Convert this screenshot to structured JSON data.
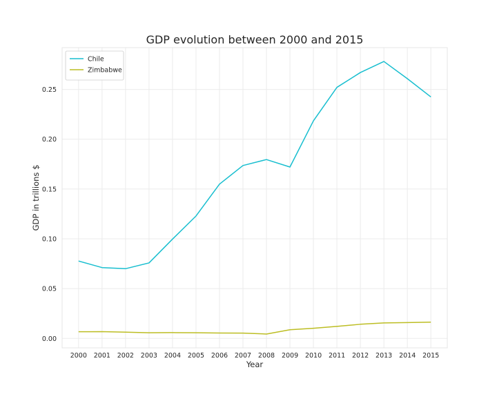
{
  "chart_data": {
    "type": "line",
    "title": "GDP evolution between 2000 and 2015",
    "xlabel": "Year",
    "ylabel": "GDP in trillions $",
    "x": [
      2000,
      2001,
      2002,
      2003,
      2004,
      2005,
      2006,
      2007,
      2008,
      2009,
      2010,
      2011,
      2012,
      2013,
      2014,
      2015
    ],
    "xlim": [
      1999.3,
      2015.7
    ],
    "ylim": [
      -0.0095,
      0.292
    ],
    "yticks": [
      0.0,
      0.05,
      0.1,
      0.15,
      0.2,
      0.25
    ],
    "ytick_labels": [
      "0.00",
      "0.05",
      "0.10",
      "0.15",
      "0.20",
      "0.25"
    ],
    "grid": true,
    "legend_position": "top-left",
    "series": [
      {
        "name": "Chile",
        "color": "#17becf",
        "values": [
          0.0777,
          0.0711,
          0.07,
          0.0758,
          0.0997,
          0.1229,
          0.1549,
          0.1736,
          0.1796,
          0.1721,
          0.2185,
          0.2521,
          0.267,
          0.2781,
          0.2608,
          0.2425
        ]
      },
      {
        "name": "Zimbabwe",
        "color": "#bcbd22",
        "values": [
          0.0067,
          0.0068,
          0.0063,
          0.0057,
          0.0058,
          0.0057,
          0.0054,
          0.0053,
          0.0044,
          0.0087,
          0.0102,
          0.0121,
          0.0142,
          0.0155,
          0.0159,
          0.0163
        ]
      }
    ]
  }
}
